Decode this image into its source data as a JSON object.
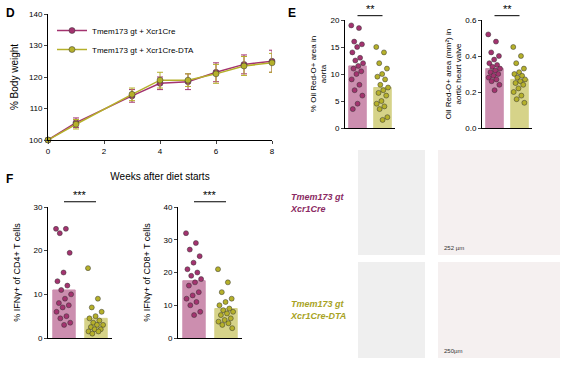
{
  "chart_data": [
    {
      "panel": "D",
      "type": "line",
      "xlabel": "Weeks after diet starts",
      "ylabel": "% Body weight",
      "x": [
        0,
        1,
        3,
        4,
        5,
        6,
        7,
        8
      ],
      "xlim": [
        0,
        8
      ],
      "xticks": [
        0,
        2,
        4,
        6,
        8
      ],
      "ylim": [
        100,
        140
      ],
      "yticks": [
        100,
        110,
        120,
        130,
        140
      ],
      "grid": false,
      "legend": "upper left",
      "marker": "circle",
      "series": [
        {
          "name": "Tmem173 gt + Xcr1Cre",
          "color": "#a3336f",
          "values": [
            100,
            105.5,
            114,
            118,
            118.5,
            121.5,
            124,
            125
          ],
          "error": [
            0,
            1.5,
            2,
            2,
            2.5,
            3,
            3,
            3.5
          ]
        },
        {
          "name": "Tmem173 gt + Xcr1Cre-DTA",
          "color": "#b5b02a",
          "values": [
            100,
            105,
            114.5,
            119,
            119,
            121,
            123.5,
            124.5
          ],
          "error": [
            0,
            1.5,
            2,
            2.5,
            2,
            3,
            3,
            3
          ]
        }
      ]
    },
    {
      "panel": "E",
      "type": "bar",
      "ylabel": "% Oil Red-O+ area in aorta",
      "categories": [
        null,
        null
      ],
      "values": [
        11.5,
        7.5
      ],
      "colors": [
        "#a3336f",
        "#b5b02a"
      ],
      "points": [
        [
          19,
          18.5,
          16,
          15.5,
          15,
          14,
          13,
          12.5,
          12,
          11.5,
          11,
          10.5,
          10,
          9,
          8,
          7,
          6,
          4.5,
          3.5
        ],
        [
          15,
          14,
          12,
          11,
          10,
          9.5,
          9,
          8,
          7.5,
          7,
          6.5,
          6,
          5,
          4.5,
          4,
          3.5,
          2,
          1.5
        ]
      ],
      "ylim": [
        0,
        20
      ],
      "yticks": [
        0,
        5,
        10,
        15,
        20
      ],
      "tick_labels": "y",
      "grid": false,
      "significance": "**"
    },
    {
      "type": "bar",
      "ylabel": "Oil Red-O+ area (mm²) in aortic heart valve",
      "categories": [
        null,
        null
      ],
      "values": [
        0.33,
        0.27
      ],
      "colors": [
        "#a3336f",
        "#b5b02a"
      ],
      "points": [
        [
          0.52,
          0.48,
          0.42,
          0.4,
          0.38,
          0.36,
          0.35,
          0.34,
          0.33,
          0.32,
          0.31,
          0.3,
          0.29,
          0.28,
          0.27,
          0.26,
          0.24,
          0.21
        ],
        [
          0.45,
          0.4,
          0.36,
          0.33,
          0.31,
          0.3,
          0.29,
          0.28,
          0.27,
          0.26,
          0.25,
          0.24,
          0.22,
          0.2,
          0.18,
          0.16,
          0.14
        ]
      ],
      "ylim": [
        0,
        0.6
      ],
      "yticks": [
        {
          "value": 0,
          "label": "0.0"
        },
        0.2,
        0.4,
        0.6
      ],
      "tick_labels": "y",
      "grid": false,
      "significance": "**"
    },
    {
      "panel": "F",
      "type": "bar",
      "ylabel": "% IFNγ+ of CD4+ T cells",
      "categories": [
        null,
        null
      ],
      "values": [
        11,
        4.5
      ],
      "colors": [
        "#a3336f",
        "#b5b02a"
      ],
      "points": [
        [
          25,
          25,
          24,
          19.5,
          15,
          13,
          12,
          11,
          10,
          9,
          8,
          7.5,
          7,
          6,
          5,
          4.5,
          3.5,
          3
        ],
        [
          16,
          9,
          7,
          6,
          5,
          4.5,
          4,
          3.5,
          3,
          3,
          2.5,
          2,
          2,
          1.5,
          1.5,
          1
        ]
      ],
      "ylim": [
        0,
        30
      ],
      "yticks": [
        0,
        10,
        20,
        30
      ],
      "tick_labels": "y",
      "grid": false,
      "significance": "***"
    },
    {
      "type": "bar",
      "ylabel": "% IFNγ+ of CD8+ T cells",
      "categories": [
        null,
        null
      ],
      "values": [
        17.5,
        9
      ],
      "colors": [
        "#a3336f",
        "#b5b02a"
      ],
      "points": [
        [
          32,
          29,
          27,
          25,
          23,
          21,
          20,
          19,
          18,
          17,
          16,
          14,
          13,
          12,
          11,
          10,
          8,
          7
        ],
        [
          21,
          17,
          14,
          12,
          11,
          10,
          9,
          8.5,
          8,
          7.5,
          7,
          6,
          5.5,
          5,
          4.5,
          4,
          3
        ]
      ],
      "ylim": [
        0,
        40
      ],
      "yticks": [
        0,
        10,
        20,
        30,
        40
      ],
      "tick_labels": "y",
      "grid": false,
      "significance": "***"
    }
  ],
  "images": {
    "rows": [
      {
        "lines": [
          "Tmem173 gt",
          "Xcr1Cre"
        ],
        "color": "#8b2a63"
      },
      {
        "lines": [
          "Tmem173 gt",
          "Xcr1Cre-DTA"
        ],
        "color": "#a8a324"
      }
    ],
    "scale_bars": [
      "252 µm",
      "250µm"
    ]
  }
}
